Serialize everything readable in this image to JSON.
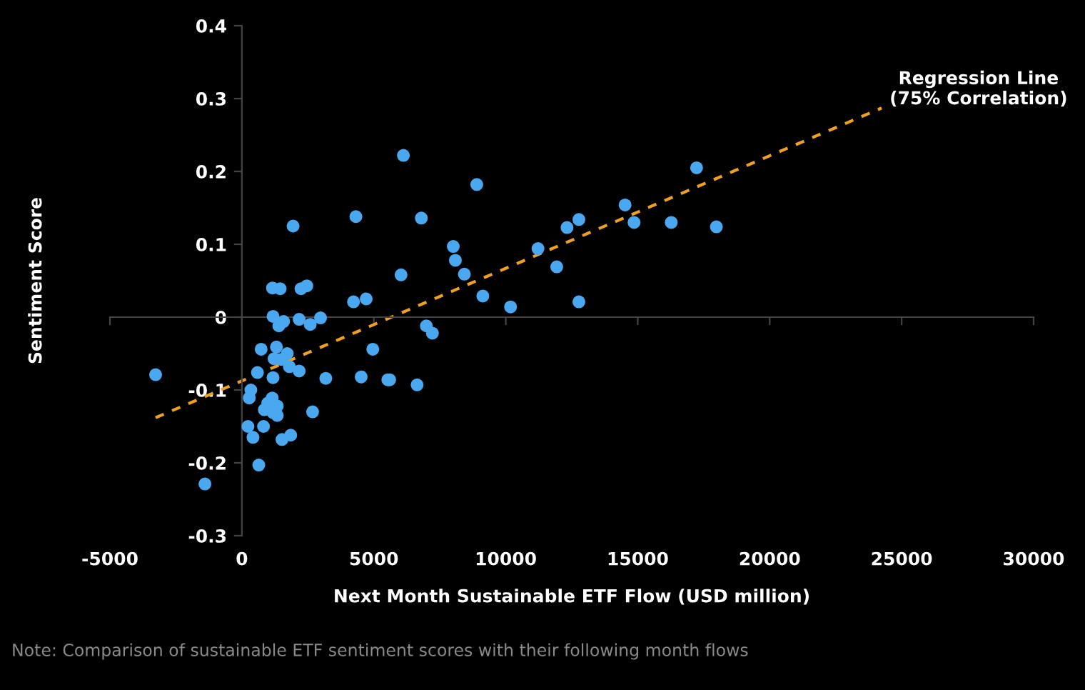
{
  "chart_data": {
    "type": "scatter",
    "xlabel": "Next Month Sustainable ETF Flow (USD million)",
    "ylabel": "Sentiment Score",
    "xlim": [
      -5000,
      30000
    ],
    "xticks": [
      -5000,
      0,
      5000,
      10000,
      15000,
      20000,
      25000,
      30000
    ],
    "ylim": [
      -0.3,
      0.4
    ],
    "yticks": [
      -0.3,
      -0.2,
      -0.1,
      0,
      0.1,
      0.2,
      0.3,
      0.4
    ],
    "legend": false,
    "marker": "circle",
    "series": [
      {
        "color": "#4aa8f0",
        "x": [
          -3270,
          -1400,
          6120,
          4320,
          6800,
          1940,
          8010,
          8090,
          6030,
          1160,
          1450,
          2240,
          2460,
          4230,
          4710,
          1180,
          2170,
          2980,
          1400,
          1580,
          2590,
          6990,
          7220,
          730,
          1310,
          1720,
          4960,
          1220,
          1490,
          1800,
          2170,
          590,
          1180,
          3180,
          4520,
          5530,
          5600,
          6640,
          340,
          280,
          1150,
          980,
          1340,
          850,
          1180,
          1340,
          2680,
          230,
          820,
          420,
          1520,
          1850,
          640,
          8430,
          9130,
          10180,
          11220,
          11930,
          12320,
          12770,
          12770,
          14520,
          14860,
          16270,
          17230,
          17980,
          8900
        ],
        "values": [
          -0.079,
          -0.229,
          0.222,
          0.138,
          0.136,
          0.125,
          0.097,
          0.078,
          0.058,
          0.04,
          0.039,
          0.039,
          0.043,
          0.021,
          0.025,
          0.001,
          -0.003,
          -0.001,
          -0.012,
          -0.006,
          -0.01,
          -0.012,
          -0.022,
          -0.044,
          -0.041,
          -0.05,
          -0.044,
          -0.057,
          -0.058,
          -0.068,
          -0.074,
          -0.076,
          -0.083,
          -0.084,
          -0.082,
          -0.086,
          -0.086,
          -0.093,
          -0.1,
          -0.111,
          -0.111,
          -0.118,
          -0.122,
          -0.127,
          -0.131,
          -0.135,
          -0.13,
          -0.15,
          -0.15,
          -0.165,
          -0.168,
          -0.162,
          -0.203,
          0.059,
          0.029,
          0.014,
          0.094,
          0.069,
          0.123,
          0.134,
          0.021,
          0.154,
          0.13,
          0.13,
          0.205,
          0.124,
          0.182
        ]
      },
      {
        "type": "line",
        "color": "#f0a020",
        "line_style": "dashed",
        "marker": "none",
        "x": [
          -3270,
          24240
        ],
        "values": [
          -0.138,
          0.287
        ]
      }
    ],
    "annotations": [
      {
        "text": "Regression Line\n(75% Correlation)",
        "x": 24240,
        "y": 0.287
      },
      "Note: Comparison of sustainable ETF sentiment scores with their following month flows"
    ]
  }
}
